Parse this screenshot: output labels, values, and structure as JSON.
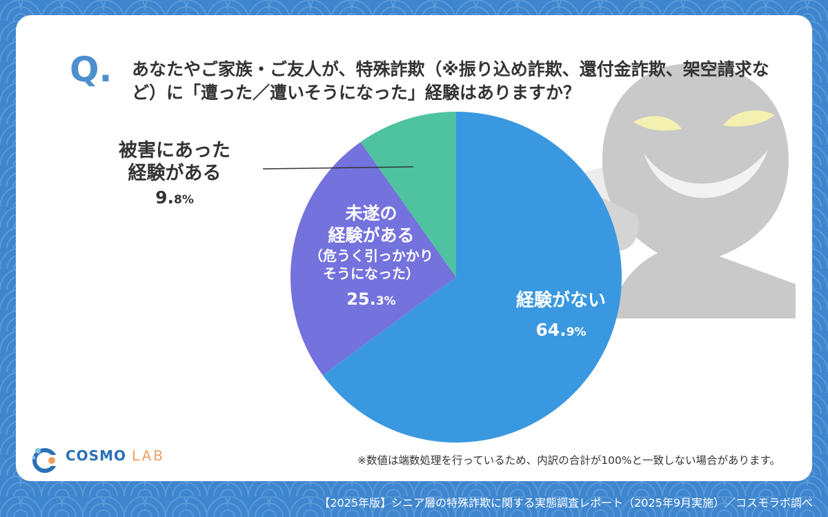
{
  "question": {
    "mark": "Q",
    "dot": ".",
    "text": "あなたやご家族・ご友人が、特殊詐欺（※振り込め詐欺、還付金詐欺、架空請求など）に「遭った／遭いそうになった」経験はありますか？"
  },
  "chart_data": {
    "type": "pie",
    "title": "",
    "slices": [
      {
        "label": "経験がない",
        "value": 64.9,
        "display_int": "64.",
        "display_dec": "9%",
        "color": "#3a98e0"
      },
      {
        "label": "未遂の\n経験がある",
        "sublabel": "（危うく引っかかり\nそうになった）",
        "value": 25.3,
        "display_int": "25.",
        "display_dec": "3%",
        "color": "#7472dd"
      },
      {
        "label": "被害にあった\n経験がある",
        "value": 9.8,
        "display_int": "9.",
        "display_dec": "8%",
        "color": "#4fc2a0"
      }
    ],
    "start_angle_deg": 0,
    "direction": "clockwise"
  },
  "logo": {
    "name": "COSMO",
    "suffix": "LAB"
  },
  "note": "※数値は端数処理を行っているため、内訳の合計が100%と一致しない場合があります。",
  "footer": "【2025年版】シニア層の特殊詐欺に関する実態調査レポート（2025年9月実施）／コスモラボ調べ",
  "colors": {
    "background": "#3f86cf",
    "card": "#ffffff",
    "accent": "#4d8fce"
  }
}
